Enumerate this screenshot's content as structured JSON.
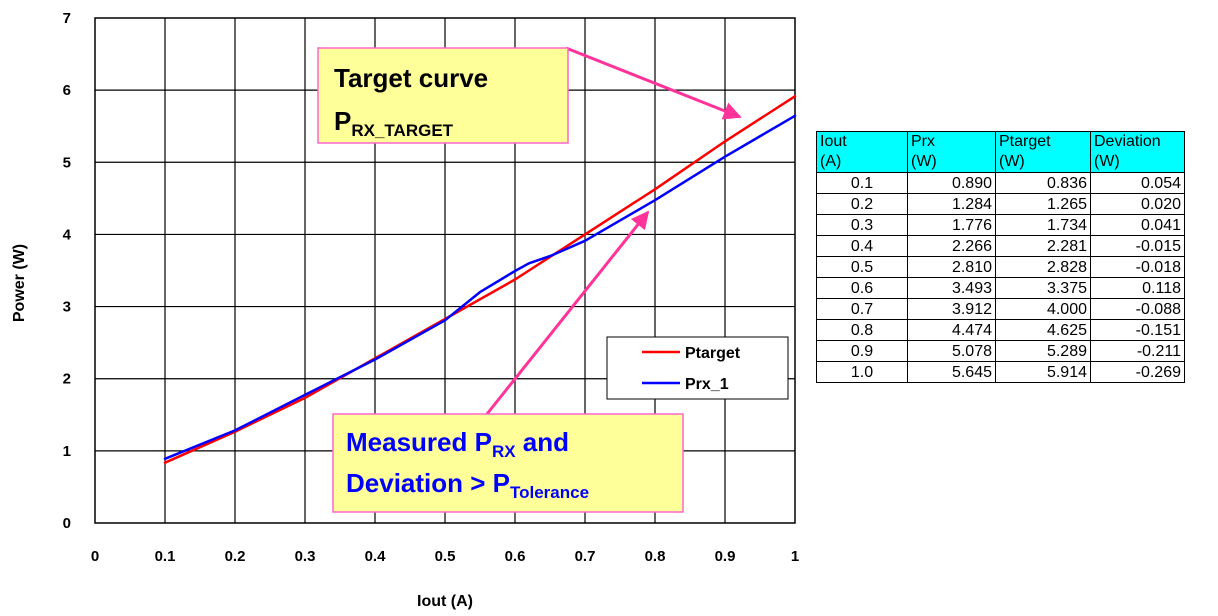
{
  "chart_data": {
    "type": "line",
    "xlabel": "Iout (A)",
    "ylabel": "Power (W)",
    "xlim": [
      0,
      1
    ],
    "ylim": [
      0,
      7
    ],
    "xticks": [
      "0",
      "0.1",
      "0.2",
      "0.3",
      "0.4",
      "0.5",
      "0.6",
      "0.7",
      "0.8",
      "0.9",
      "1"
    ],
    "yticks": [
      "0",
      "1",
      "2",
      "3",
      "4",
      "5",
      "6",
      "7"
    ],
    "grid": true,
    "legend_position": "center-right",
    "series": [
      {
        "name": "Ptarget",
        "color": "#ff0000",
        "x": [
          0.1,
          0.2,
          0.3,
          0.4,
          0.5,
          0.6,
          0.7,
          0.8,
          0.9,
          1.0
        ],
        "y": [
          0.836,
          1.265,
          1.734,
          2.281,
          2.828,
          3.375,
          4.0,
          4.625,
          5.289,
          5.914
        ]
      },
      {
        "name": "Prx_1",
        "color": "#0000ff",
        "x": [
          0.1,
          0.2,
          0.3,
          0.4,
          0.5,
          0.55,
          0.6,
          0.62,
          0.65,
          0.7,
          0.8,
          0.9,
          1.0
        ],
        "y": [
          0.89,
          1.284,
          1.776,
          2.266,
          2.81,
          3.2,
          3.493,
          3.6,
          3.7,
          3.912,
          4.474,
          5.078,
          5.645
        ]
      }
    ],
    "annotations": [
      {
        "line1": "Target curve",
        "p_main": "P",
        "p_sub": "RX_TARGET",
        "arrow_color": "#ff3399"
      },
      {
        "line1_main": "Measured P",
        "line1_sub": "RX",
        "line1_tail": " and",
        "line2_main": "Deviation > P",
        "line2_sub": "Tolerance",
        "arrow_color": "#ff3399"
      }
    ]
  },
  "table": {
    "headers": [
      [
        "Iout",
        "(A)"
      ],
      [
        "Prx",
        "(W)"
      ],
      [
        "Ptarget",
        "(W)"
      ],
      [
        "Deviation",
        "(W)"
      ]
    ],
    "rows": [
      [
        "0.1",
        "0.890",
        "0.836",
        "0.054"
      ],
      [
        "0.2",
        "1.284",
        "1.265",
        "0.020"
      ],
      [
        "0.3",
        "1.776",
        "1.734",
        "0.041"
      ],
      [
        "0.4",
        "2.266",
        "2.281",
        "-0.015"
      ],
      [
        "0.5",
        "2.810",
        "2.828",
        "-0.018"
      ],
      [
        "0.6",
        "3.493",
        "3.375",
        "0.118"
      ],
      [
        "0.7",
        "3.912",
        "4.000",
        "-0.088"
      ],
      [
        "0.8",
        "4.474",
        "4.625",
        "-0.151"
      ],
      [
        "0.9",
        "5.078",
        "5.289",
        "-0.211"
      ],
      [
        "1.0",
        "5.645",
        "5.914",
        "-0.269"
      ]
    ]
  }
}
